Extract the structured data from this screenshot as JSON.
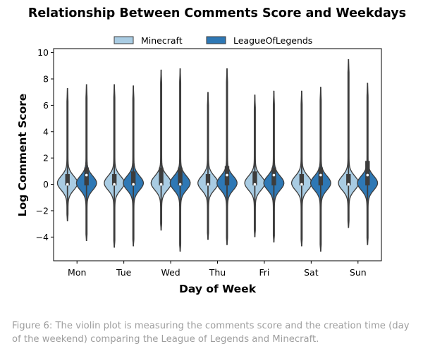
{
  "chart_data": {
    "type": "violin",
    "title": "Relationship Between Comments Score and Weekdays",
    "xlabel": "Day of Week",
    "ylabel": "Log Comment Score",
    "ylim": [
      -5.8,
      10.3
    ],
    "yticks": [
      -4,
      -2,
      0,
      2,
      4,
      6,
      8,
      10
    ],
    "ytick_labels": [
      "−4",
      "−2",
      "0",
      "2",
      "4",
      "6",
      "8",
      "10"
    ],
    "categories": [
      "Mon",
      "Tue",
      "Wed",
      "Thu",
      "Fri",
      "Sat",
      "Sun"
    ],
    "legend_position": "top-center",
    "series": [
      {
        "name": "Minecraft",
        "color": "#a9cce3",
        "stats": [
          {
            "min": -2.8,
            "q1": 0.0,
            "median": 0.0,
            "q3": 0.7,
            "max": 7.3
          },
          {
            "min": -4.8,
            "q1": 0.0,
            "median": 0.0,
            "q3": 0.7,
            "max": 7.6
          },
          {
            "min": -3.5,
            "q1": 0.0,
            "median": 0.0,
            "q3": 1.2,
            "max": 8.7
          },
          {
            "min": -4.2,
            "q1": 0.0,
            "median": 0.0,
            "q3": 0.7,
            "max": 7.0
          },
          {
            "min": -4.0,
            "q1": 0.0,
            "median": 0.0,
            "q3": 0.9,
            "max": 6.8
          },
          {
            "min": -4.7,
            "q1": 0.0,
            "median": 0.0,
            "q3": 0.7,
            "max": 7.1
          },
          {
            "min": -3.3,
            "q1": 0.0,
            "median": 0.0,
            "q3": 0.7,
            "max": 9.5
          }
        ]
      },
      {
        "name": "LeagueOfLegends",
        "color": "#2e78b5",
        "stats": [
          {
            "min": -4.3,
            "q1": 0.0,
            "median": 0.7,
            "q3": 1.2,
            "max": 7.6
          },
          {
            "min": -4.7,
            "q1": 0.0,
            "median": 0.0,
            "q3": 0.9,
            "max": 7.5
          },
          {
            "min": -5.1,
            "q1": 0.0,
            "median": 0.0,
            "q3": 1.2,
            "max": 8.8
          },
          {
            "min": -4.6,
            "q1": 0.0,
            "median": 0.7,
            "q3": 1.3,
            "max": 8.8
          },
          {
            "min": -4.4,
            "q1": 0.0,
            "median": 0.7,
            "q3": 1.2,
            "max": 7.1
          },
          {
            "min": -5.1,
            "q1": 0.0,
            "median": 0.7,
            "q3": 1.2,
            "max": 7.4
          },
          {
            "min": -4.6,
            "q1": 0.0,
            "median": 0.7,
            "q3": 1.7,
            "max": 7.7
          }
        ]
      }
    ]
  },
  "caption": "Figure 6: The violin plot is measuring the comments score and the creation time (day of the weekend) comparing the League of Legends and Minecraft."
}
